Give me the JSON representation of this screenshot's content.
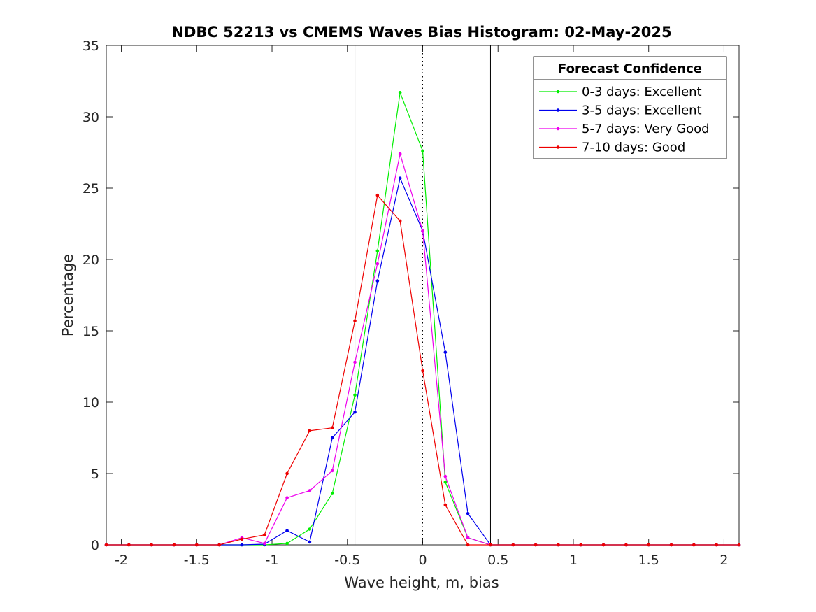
{
  "chart_data": {
    "type": "line",
    "title": "NDBC 52213 vs CMEMS Waves Bias Histogram: 02-May-2025",
    "xlabel": "Wave height, m, bias",
    "ylabel": "Percentage",
    "xlim": [
      -2.1,
      2.1
    ],
    "ylim": [
      0,
      35
    ],
    "xticks": [
      -2,
      -1.5,
      -1,
      -0.5,
      0,
      0.5,
      1,
      1.5,
      2
    ],
    "xtick_labels": [
      "-2",
      "-1.5",
      "-1",
      "-0.5",
      "0",
      "0.5",
      "1",
      "1.5",
      "2"
    ],
    "yticks": [
      0,
      5,
      10,
      15,
      20,
      25,
      30,
      35
    ],
    "ytick_labels": [
      "0",
      "5",
      "10",
      "15",
      "20",
      "25",
      "30",
      "35"
    ],
    "grid": false,
    "vertical_lines": [
      {
        "x": -0.45,
        "style": "solid"
      },
      {
        "x": 0,
        "style": "dotted"
      },
      {
        "x": 0.45,
        "style": "solid"
      }
    ],
    "legend": {
      "title": "Forecast Confidence",
      "position": "top-right"
    },
    "x": [
      -2.1,
      -1.95,
      -1.8,
      -1.65,
      -1.5,
      -1.35,
      -1.2,
      -1.05,
      -0.9,
      -0.75,
      -0.6,
      -0.45,
      -0.3,
      -0.15,
      0,
      0.15,
      0.3,
      0.45,
      0.6,
      0.75,
      0.9,
      1.05,
      1.2,
      1.35,
      1.5,
      1.65,
      1.8,
      1.95,
      2.1
    ],
    "series": [
      {
        "name": "0-3 days: Excellent",
        "color": "#00ee00",
        "values": [
          0,
          0,
          0,
          0,
          0,
          0,
          0,
          0,
          0.1,
          1.1,
          3.6,
          10.5,
          20.6,
          31.7,
          27.6,
          4.4,
          0.5,
          0,
          0,
          0,
          0,
          0,
          0,
          0,
          0,
          0,
          0,
          0,
          0
        ]
      },
      {
        "name": "3-5 days: Excellent",
        "color": "#0000ee",
        "values": [
          0,
          0,
          0,
          0,
          0,
          0,
          0,
          0.05,
          1.0,
          0.2,
          7.5,
          9.3,
          18.5,
          25.7,
          22.0,
          13.5,
          2.2,
          0,
          0,
          0,
          0,
          0,
          0,
          0,
          0,
          0,
          0,
          0,
          0
        ]
      },
      {
        "name": "5-7 days: Very Good",
        "color": "#ee00ee",
        "values": [
          0,
          0,
          0,
          0,
          0,
          0,
          0.5,
          0.1,
          3.3,
          3.8,
          5.2,
          12.8,
          19.7,
          27.4,
          22.0,
          4.8,
          0.5,
          0,
          0,
          0,
          0,
          0,
          0,
          0,
          0,
          0,
          0,
          0,
          0
        ]
      },
      {
        "name": "7-10 days: Good",
        "color": "#ee0000",
        "values": [
          0,
          0,
          0,
          0,
          0,
          0,
          0.4,
          0.7,
          5.0,
          8.0,
          8.2,
          15.7,
          24.5,
          22.7,
          12.2,
          2.8,
          0,
          0,
          0,
          0,
          0,
          0,
          0,
          0,
          0,
          0,
          0,
          0,
          0
        ]
      }
    ]
  }
}
